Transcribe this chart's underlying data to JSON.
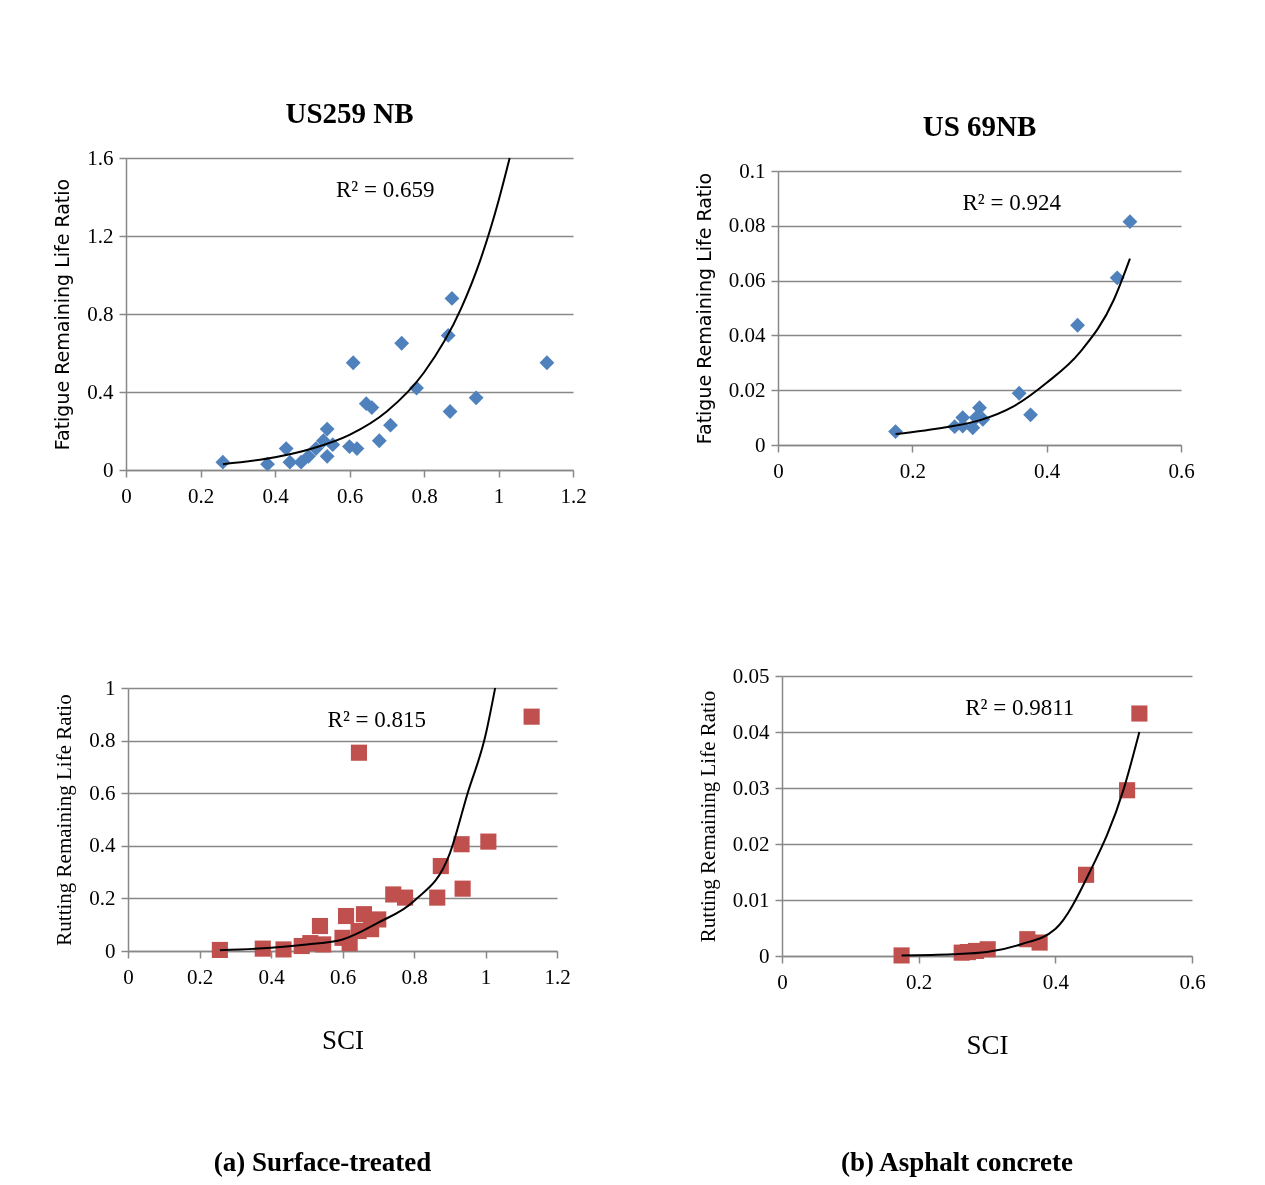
{
  "chart_data": [
    {
      "type": "scatter",
      "title": "US259 NB",
      "ylabel": "Fatigue Remaining Life Ratio",
      "grid": "y",
      "xlim": [
        0,
        1.2
      ],
      "xticks": [
        0,
        0.2,
        0.4,
        0.6,
        0.8,
        1,
        1.2
      ],
      "ylim": [
        0,
        1.6
      ],
      "yticks": [
        0,
        0.4,
        0.8,
        1.2,
        1.6
      ],
      "annotations": [
        "R² = 0.659"
      ],
      "x": [
        0.26,
        0.38,
        0.43,
        0.44,
        0.47,
        0.49,
        0.51,
        0.54,
        0.54,
        0.53,
        0.555,
        0.6,
        0.62,
        0.61,
        0.645,
        0.66,
        0.68,
        0.71,
        0.74,
        0.78,
        0.865,
        0.87,
        0.875,
        0.94,
        1.13
      ],
      "series": [
        {
          "color": "#4f81bd",
          "marker": "diamond",
          "values": [
            0.04,
            0.03,
            0.11,
            0.04,
            0.04,
            0.07,
            0.11,
            0.21,
            0.07,
            0.15,
            0.13,
            0.12,
            0.11,
            0.55,
            0.34,
            0.32,
            0.15,
            0.23,
            0.65,
            0.42,
            0.69,
            0.3,
            0.88,
            0.37,
            0.55
          ]
        },
        {
          "type": "line",
          "marker": "none",
          "color": "#000000",
          "x": [
            0.26,
            0.4,
            0.5,
            0.6,
            0.7,
            0.8,
            0.9,
            0.95,
            1,
            1.03
          ],
          "values": [
            0.03,
            0.065,
            0.11,
            0.18,
            0.3,
            0.5,
            0.83,
            1.07,
            1.38,
            1.6
          ]
        }
      ]
    },
    {
      "type": "scatter",
      "title": "US 69NB",
      "ylabel": "Fatigue  Remaining Life Ratio",
      "grid": "y",
      "xlim": [
        0,
        0.6
      ],
      "xticks": [
        0,
        0.2,
        0.4,
        0.6
      ],
      "ylim": [
        0,
        0.1
      ],
      "yticks": [
        0,
        0.02,
        0.04,
        0.06,
        0.08,
        0.1
      ],
      "annotations": [
        "R² = 0.924"
      ],
      "x": [
        0.175,
        0.263,
        0.275,
        0.275,
        0.29,
        0.3,
        0.305,
        0.295,
        0.359,
        0.376,
        0.446,
        0.505,
        0.524
      ],
      "series": [
        {
          "color": "#4f81bd",
          "marker": "diamond",
          "values": [
            0.0049,
            0.0067,
            0.01,
            0.0069,
            0.0063,
            0.0136,
            0.0094,
            0.01,
            0.0189,
            0.011,
            0.0437,
            0.061,
            0.0815
          ]
        },
        {
          "type": "line",
          "marker": "none",
          "color": "#000000",
          "x": [
            0.175,
            0.25,
            0.3,
            0.35,
            0.4,
            0.45,
            0.5,
            0.524
          ],
          "values": [
            0.004,
            0.0065,
            0.009,
            0.014,
            0.0227,
            0.034,
            0.053,
            0.068
          ]
        }
      ]
    },
    {
      "type": "scatter",
      "xlabel": "SCI",
      "ylabel": "Rutting Remaining Life Ratio",
      "grid": "y",
      "xlim": [
        0,
        1.2
      ],
      "xticks": [
        0,
        0.2,
        0.4,
        0.6,
        0.8,
        1,
        1.2
      ],
      "ylim": [
        0,
        1
      ],
      "yticks": [
        0,
        0.2,
        0.4,
        0.6,
        0.8,
        1
      ],
      "annotations": [
        "R² = 0.815",
        "(a) Surface-treated"
      ],
      "x": [
        0.257,
        0.377,
        0.435,
        0.486,
        0.51,
        0.537,
        0.546,
        0.6,
        0.61,
        0.62,
        0.645,
        0.66,
        0.68,
        0.7,
        0.646,
        0.742,
        0.775,
        0.865,
        0.875,
        0.933,
        0.936,
        1.008,
        1.129
      ],
      "series": [
        {
          "color": "#c0504d",
          "marker": "square",
          "values": [
            0.004,
            0.009,
            0.006,
            0.019,
            0.03,
            0.095,
            0.025,
            0.05,
            0.133,
            0.03,
            0.076,
            0.14,
            0.083,
            0.12,
            0.754,
            0.215,
            0.203,
            0.203,
            0.323,
            0.406,
            0.237,
            0.416,
            0.891
          ]
        },
        {
          "type": "line",
          "marker": "none",
          "color": "#000000",
          "x": [
            0.257,
            0.4,
            0.5,
            0.6,
            0.7,
            0.8,
            0.9,
            0.95,
            1,
            1.027
          ],
          "values": [
            0.003,
            0.012,
            0.025,
            0.044,
            0.108,
            0.19,
            0.37,
            0.6,
            0.82,
            1
          ]
        }
      ]
    },
    {
      "type": "scatter",
      "xlabel": "SCI",
      "ylabel": "Rutting Remaining Life Ratio",
      "grid": "y",
      "xlim": [
        0,
        0.6
      ],
      "xticks": [
        0,
        0.2,
        0.4,
        0.6
      ],
      "ylim": [
        0,
        0.05
      ],
      "yticks": [
        0,
        0.01,
        0.02,
        0.03,
        0.04,
        0.05
      ],
      "annotations": [
        "R² = 0.9811",
        "(b) Asphalt concrete"
      ],
      "x": [
        0.175,
        0.263,
        0.272,
        0.284,
        0.301,
        0.359,
        0.377,
        0.445,
        0.505,
        0.523
      ],
      "series": [
        {
          "color": "#c0504d",
          "marker": "square",
          "values": [
            0.0001,
            0.0006,
            0.0007,
            0.0009,
            0.0012,
            0.003,
            0.0024,
            0.0145,
            0.0296,
            0.0433
          ]
        },
        {
          "type": "line",
          "marker": "none",
          "color": "#000000",
          "x": [
            0.175,
            0.25,
            0.3,
            0.35,
            0.4,
            0.45,
            0.5,
            0.523
          ],
          "values": [
            0.0001,
            0.0003,
            0.0007,
            0.0021,
            0.0048,
            0.0149,
            0.0298,
            0.04
          ]
        }
      ]
    }
  ]
}
